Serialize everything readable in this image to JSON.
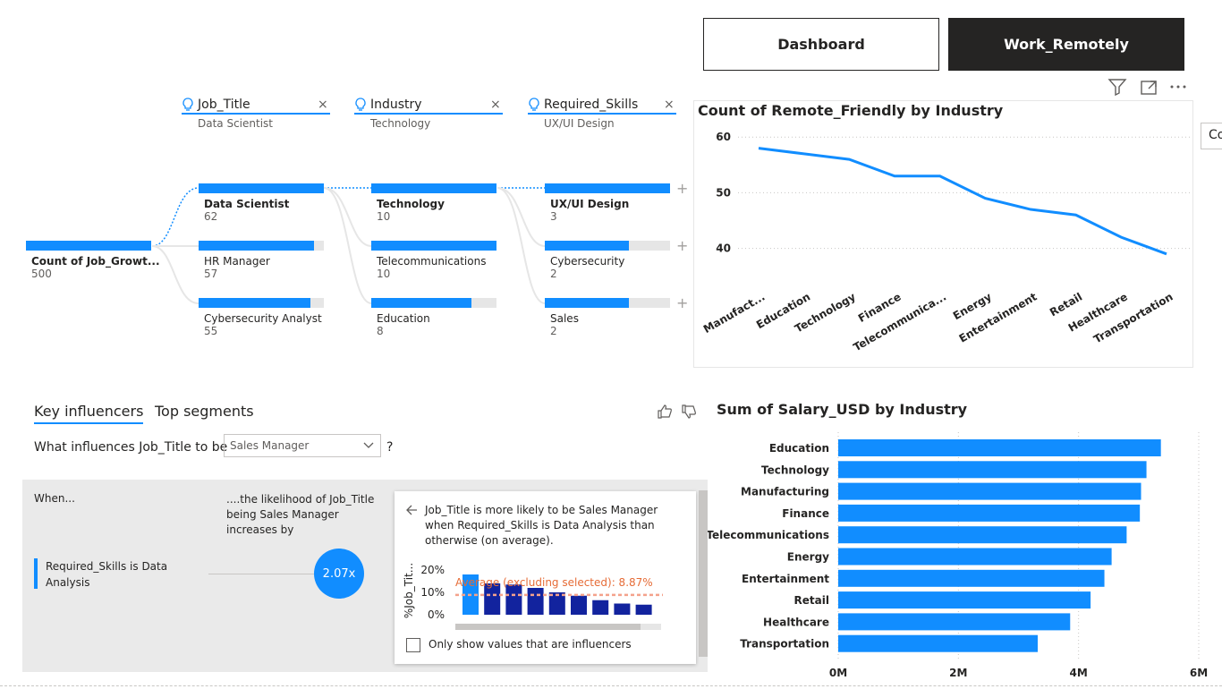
{
  "nav": {
    "dashboard_label": "Dashboard",
    "work_remotely_label": "Work_Remotely"
  },
  "decomposition_tree": {
    "levels": [
      {
        "title": "Job_Title",
        "selected": "Data Scientist"
      },
      {
        "title": "Industry",
        "selected": "Technology"
      },
      {
        "title": "Required_Skills",
        "selected": "UX/UI Design"
      }
    ],
    "root": {
      "label": "Count of Job_Growt...",
      "value": "500"
    },
    "job_titles": [
      {
        "label": "Data Scientist",
        "value": "62",
        "fill": 1.0
      },
      {
        "label": "HR Manager",
        "value": "57",
        "fill": 0.92
      },
      {
        "label": "Cybersecurity Analyst",
        "value": "55",
        "fill": 0.89
      }
    ],
    "industries": [
      {
        "label": "Technology",
        "value": "10",
        "fill": 1.0
      },
      {
        "label": "Telecommunications",
        "value": "10",
        "fill": 1.0
      },
      {
        "label": "Education",
        "value": "8",
        "fill": 0.8
      }
    ],
    "skills": [
      {
        "label": "UX/UI Design",
        "value": "3",
        "fill": 1.0
      },
      {
        "label": "Cybersecurity",
        "value": "2",
        "fill": 0.67
      },
      {
        "label": "Sales",
        "value": "2",
        "fill": 0.67
      }
    ]
  },
  "key_influencers": {
    "tab_key": "Key influencers",
    "tab_segments": "Top segments",
    "question": "What influences Job_Title to be",
    "selected_value": "Sales Manager",
    "qmark": "?",
    "when_label": "When...",
    "likelihood_label": "....the likelihood of Job_Title being Sales Manager increases by",
    "influencer": "Required_Skills is Data Analysis",
    "multiplier": "2.07x",
    "detail_text": "Job_Title is more likely to be Sales Manager when Required_Skills is Data Analysis than otherwise (on average).",
    "mini_axis_label": "%Job_Tit...",
    "mini_ticks": [
      "20%",
      "10%",
      "0%"
    ],
    "average_label": "Average (excluding selected): 8.87%",
    "checkbox_label": "Only show values that are influencers",
    "mini_values": [
      18,
      14,
      13.5,
      12,
      10,
      8.5,
      6.5,
      5,
      4.5
    ]
  },
  "line_chart_title": "Count of Remote_Friendly by Industry",
  "bar_chart_title": "Sum of Salary_USD by Industry",
  "side_tooltip": "Co",
  "chart_data": [
    {
      "type": "line",
      "title": "Count of Remote_Friendly by Industry",
      "categories": [
        "Manufact...",
        "Education",
        "Technology",
        "Finance",
        "Telecommunica...",
        "Energy",
        "Entertainment",
        "Retail",
        "Healthcare",
        "Transportation"
      ],
      "values": [
        58,
        57,
        56,
        53,
        53,
        49,
        47,
        46,
        42,
        39
      ],
      "yticks": [
        "60",
        "50",
        "40"
      ],
      "ylim": [
        38,
        61
      ],
      "color": "#118dff",
      "grid": true
    },
    {
      "type": "bar",
      "orientation": "horizontal",
      "title": "Sum of Salary_USD by Industry",
      "categories": [
        "Education",
        "Technology",
        "Manufacturing",
        "Finance",
        "Telecommunications",
        "Energy",
        "Entertainment",
        "Retail",
        "Healthcare",
        "Transportation"
      ],
      "values": [
        5.37,
        5.13,
        5.04,
        5.02,
        4.8,
        4.55,
        4.43,
        4.2,
        3.86,
        3.32
      ],
      "unit": "M",
      "xticks": [
        "0M",
        "2M",
        "4M",
        "6M"
      ],
      "xlim": [
        0,
        6
      ],
      "color": "#118dff",
      "grid": true
    }
  ]
}
